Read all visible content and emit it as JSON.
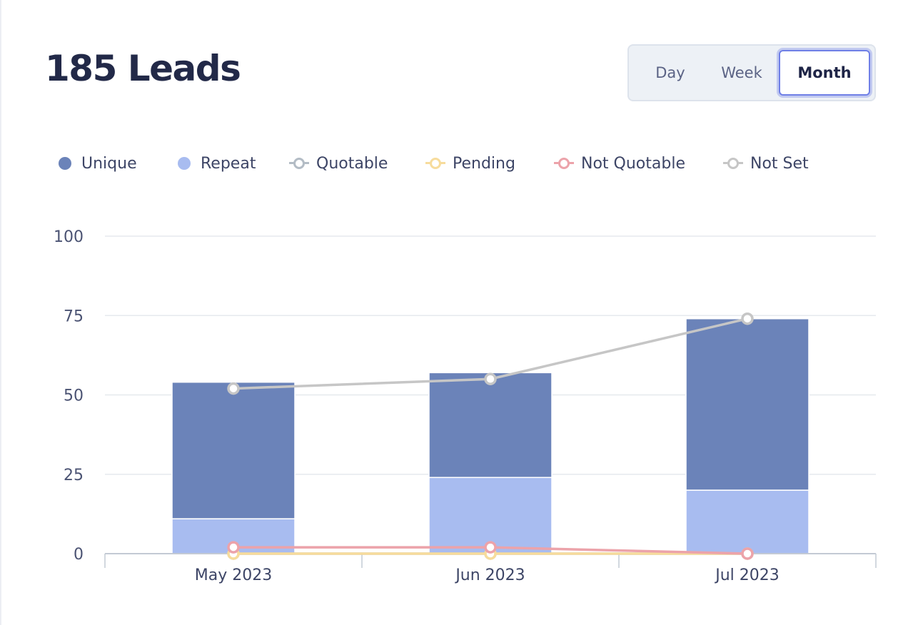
{
  "header": {
    "title": "185 Leads"
  },
  "period_toggle": {
    "options": [
      {
        "label": "Day",
        "selected": false
      },
      {
        "label": "Week",
        "selected": false
      },
      {
        "label": "Month",
        "selected": true
      }
    ]
  },
  "colors": {
    "unique": "#6b83b9",
    "repeat": "#a8bcf0",
    "quotable": "#b3bcc5",
    "pending": "#f7dc9c",
    "not_quotable": "#eca3aa",
    "not_set": "#c6c6c6",
    "grid": "#e6e9ee",
    "axis": "#c3cad4"
  },
  "chart_data": {
    "type": "bar",
    "stacked": true,
    "categories": [
      "May 2023",
      "Jun 2023",
      "Jul 2023"
    ],
    "ylim": [
      0,
      100
    ],
    "yticks": [
      0,
      25,
      50,
      75,
      100
    ],
    "grid": true,
    "legend_position": "top",
    "series": [
      {
        "name": "Unique",
        "type": "bar",
        "icon": "filled-dot",
        "values": [
          43,
          33,
          54
        ]
      },
      {
        "name": "Repeat",
        "type": "bar",
        "icon": "filled-dot",
        "values": [
          11,
          24,
          20
        ]
      },
      {
        "name": "Quotable",
        "type": "line",
        "icon": "line-ring",
        "values": [
          0,
          0,
          0
        ]
      },
      {
        "name": "Pending",
        "type": "line",
        "icon": "line-ring",
        "values": [
          0,
          0,
          0
        ]
      },
      {
        "name": "Not Quotable",
        "type": "line",
        "icon": "line-ring",
        "values": [
          2,
          2,
          0
        ]
      },
      {
        "name": "Not Set",
        "type": "line",
        "icon": "line-ring",
        "values": [
          52,
          55,
          74
        ]
      }
    ]
  }
}
